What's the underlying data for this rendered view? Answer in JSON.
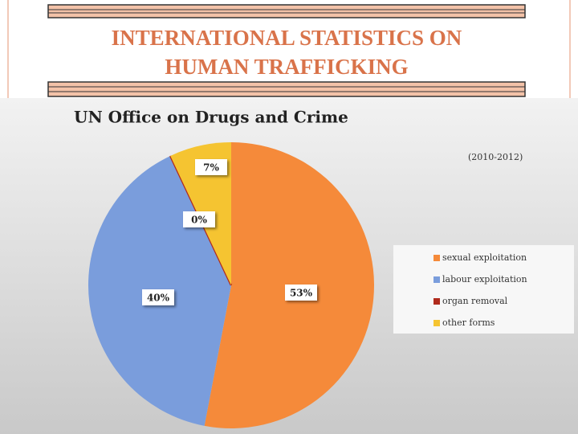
{
  "header": {
    "title_lines": [
      "INTERNATIONAL STATISTICS ON",
      "HUMAN TRAFFICKING"
    ]
  },
  "chart_data": {
    "type": "pie",
    "title": "UN Office on Drugs and Crime",
    "annotation": "(2010-2012)",
    "categories": [
      "sexual exploitation",
      "labour exploitation",
      "organ removal",
      "other forms"
    ],
    "values": [
      53,
      40,
      0,
      7
    ],
    "value_labels": [
      "53%",
      "40%",
      "0%",
      "7%"
    ],
    "colors": [
      "#f58a3a",
      "#7a9ddc",
      "#b02a1c",
      "#f5c431"
    ]
  }
}
